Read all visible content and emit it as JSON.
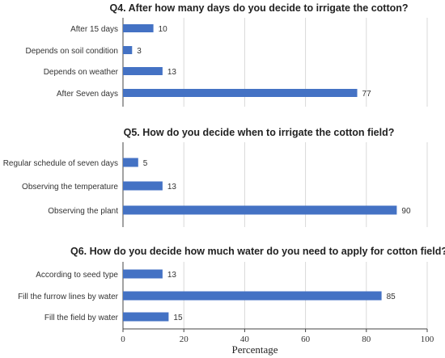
{
  "chart_data": [
    {
      "type": "bar",
      "orientation": "horizontal",
      "title": "Q4. After how many days do you decide to irrigate the cotton?",
      "categories": [
        "After 15 days",
        "Depends on soil condition",
        "Depends on weather",
        "After Seven days"
      ],
      "values": [
        10,
        3,
        13,
        77
      ],
      "xlim": [
        0,
        100
      ],
      "grid": true,
      "color": "#4472c4"
    },
    {
      "type": "bar",
      "orientation": "horizontal",
      "title": "Q5. How do you decide when to irrigate the cotton field?",
      "categories": [
        "Regular schedule of seven days",
        "Observing the temperature",
        "Observing the plant"
      ],
      "values": [
        5,
        13,
        90
      ],
      "xlim": [
        0,
        100
      ],
      "grid": true,
      "color": "#4472c4"
    },
    {
      "type": "bar",
      "orientation": "horizontal",
      "title": "Q6. How do you decide how much water do you need to apply for cotton field?",
      "categories": [
        "According to seed type",
        "Fill the furrow lines by water",
        "Fill the field by water"
      ],
      "values": [
        13,
        85,
        15
      ],
      "xlim": [
        0,
        100
      ],
      "xticks": [
        0,
        20,
        40,
        60,
        80,
        100
      ],
      "xlabel": "Percentage",
      "grid": true,
      "color": "#4472c4"
    }
  ]
}
